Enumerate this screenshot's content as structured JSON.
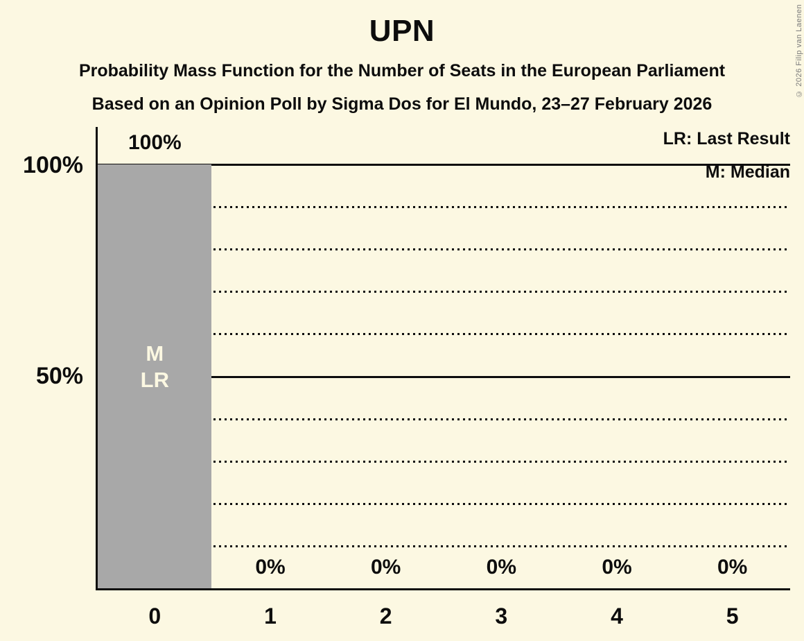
{
  "title": "UPN",
  "subtitle1": "Probability Mass Function for the Number of Seats in the European Parliament",
  "subtitle2": "Based on an Opinion Poll by Sigma Dos for El Mundo, 23–27 February 2026",
  "copyright": "© 2026 Filip van Laenen",
  "legend": {
    "lr": "LR: Last Result",
    "m": "M: Median"
  },
  "colors": {
    "background": "#FCF8E2",
    "bar": "#A8A8A8",
    "text": "#0D0D0D",
    "bar_annotation_text": "#FCF8E2",
    "line": "#0D0D0D",
    "copyright": "#7A7A7A"
  },
  "y_axis": {
    "ticks": [
      {
        "label": "100%",
        "value": 100
      },
      {
        "label": "50%",
        "value": 50
      }
    ]
  },
  "chart_data": {
    "type": "bar",
    "title": "UPN",
    "xlabel": "",
    "ylabel": "",
    "categories": [
      "0",
      "1",
      "2",
      "3",
      "4",
      "5"
    ],
    "values": [
      100,
      0,
      0,
      0,
      0,
      0
    ],
    "value_labels": [
      "100%",
      "0%",
      "0%",
      "0%",
      "0%",
      "0%"
    ],
    "ylim": [
      0,
      100
    ],
    "grid": true,
    "gridlines": {
      "solid": [
        100,
        50
      ],
      "dotted": [
        90,
        80,
        70,
        60,
        40,
        30,
        20,
        10
      ]
    },
    "bar_annotations": [
      {
        "category": "0",
        "lines": [
          "M",
          "LR"
        ]
      }
    ],
    "legend_position": "top-right"
  }
}
